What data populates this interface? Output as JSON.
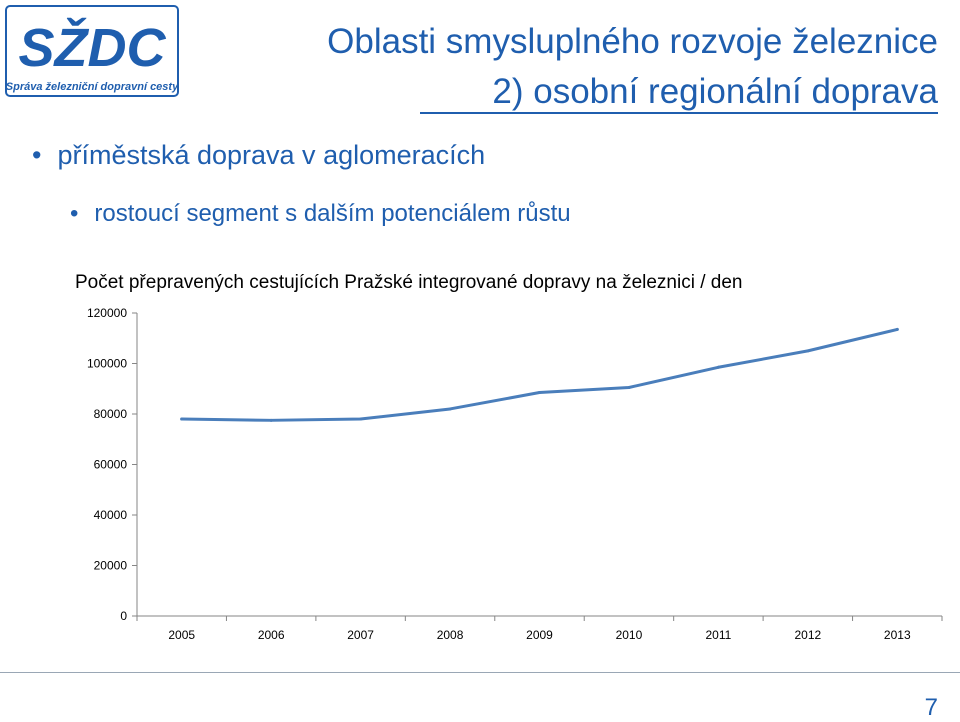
{
  "logo": {
    "text": "SŽDC",
    "subtitle": "Správa železniční dopravní cesty"
  },
  "title": {
    "line1": "Oblasti smysluplného rozvoje železnice",
    "line2": "2) osobní regionální doprava"
  },
  "bullets": [
    {
      "text": "příměstská doprava v aglomeracích"
    },
    {
      "text": "rostoucí segment s dalším potenciálem růstu"
    }
  ],
  "page_number": "7",
  "colors": {
    "accent": "#1f5eae",
    "line": "#4a7ebb"
  },
  "chart_data": {
    "type": "line",
    "title": "Počet přepravených cestujících Pražské integrované dopravy na železnici / den",
    "categories": [
      "2005",
      "2006",
      "2007",
      "2008",
      "2009",
      "2010",
      "2011",
      "2012",
      "2013"
    ],
    "series": [
      {
        "values": [
          78000,
          77500,
          78000,
          82000,
          88500,
          90500,
          98500,
          105000,
          113500
        ]
      }
    ],
    "ylim": [
      0,
      120000
    ],
    "yticks": [
      0,
      20000,
      40000,
      60000,
      80000,
      100000,
      120000
    ],
    "grid": false,
    "legend": "none"
  }
}
